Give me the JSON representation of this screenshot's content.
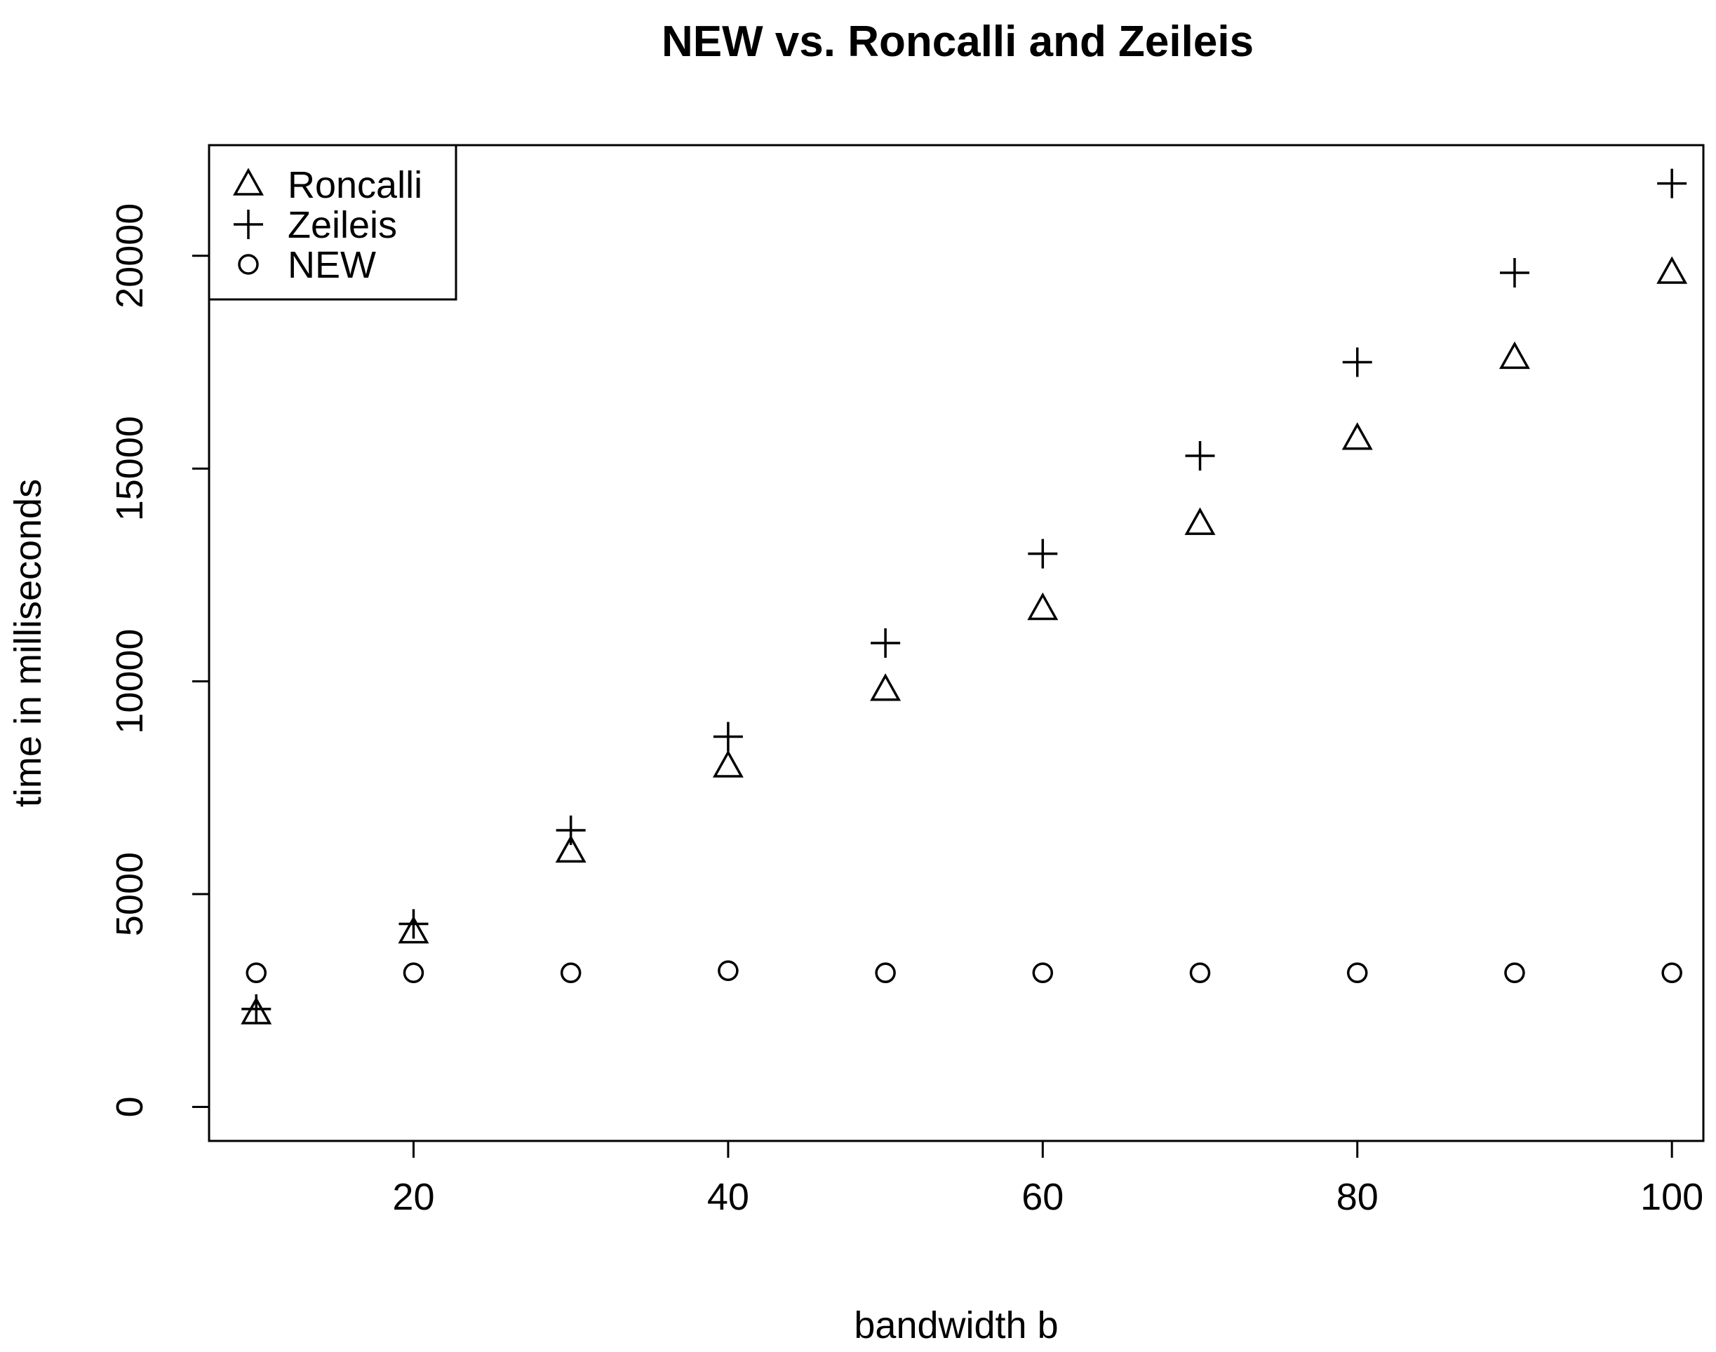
{
  "chart_data": {
    "type": "scatter",
    "title": "NEW vs. Roncalli and Zeileis",
    "xlabel": "bandwidth b",
    "ylabel": "time in milliseconds",
    "xlim": [
      7,
      102
    ],
    "ylim": [
      -800,
      22600
    ],
    "x_ticks": [
      20,
      40,
      60,
      80,
      100
    ],
    "y_ticks": [
      0,
      5000,
      10000,
      15000,
      20000
    ],
    "x_tick_labels": [
      "20",
      "40",
      "60",
      "80",
      "100"
    ],
    "y_tick_labels": [
      "0",
      "5000",
      "10000",
      "15000",
      "20000"
    ],
    "x": [
      10,
      20,
      30,
      40,
      50,
      60,
      70,
      80,
      90,
      100
    ],
    "series": [
      {
        "name": "Roncalli",
        "marker": "triangle",
        "values": [
          2200,
          4100,
          6000,
          8000,
          9800,
          11700,
          13700,
          15700,
          17600,
          19600
        ]
      },
      {
        "name": "Zeileis",
        "marker": "plus",
        "values": [
          2300,
          4300,
          6500,
          8700,
          10900,
          13000,
          15300,
          17500,
          19600,
          21700
        ]
      },
      {
        "name": "NEW",
        "marker": "circle",
        "values": [
          3150,
          3150,
          3150,
          3200,
          3150,
          3150,
          3150,
          3150,
          3150,
          3150
        ]
      }
    ],
    "legend_position": "top-left",
    "grid": false,
    "colors": {
      "ink": "#000000",
      "background": "#ffffff"
    }
  }
}
